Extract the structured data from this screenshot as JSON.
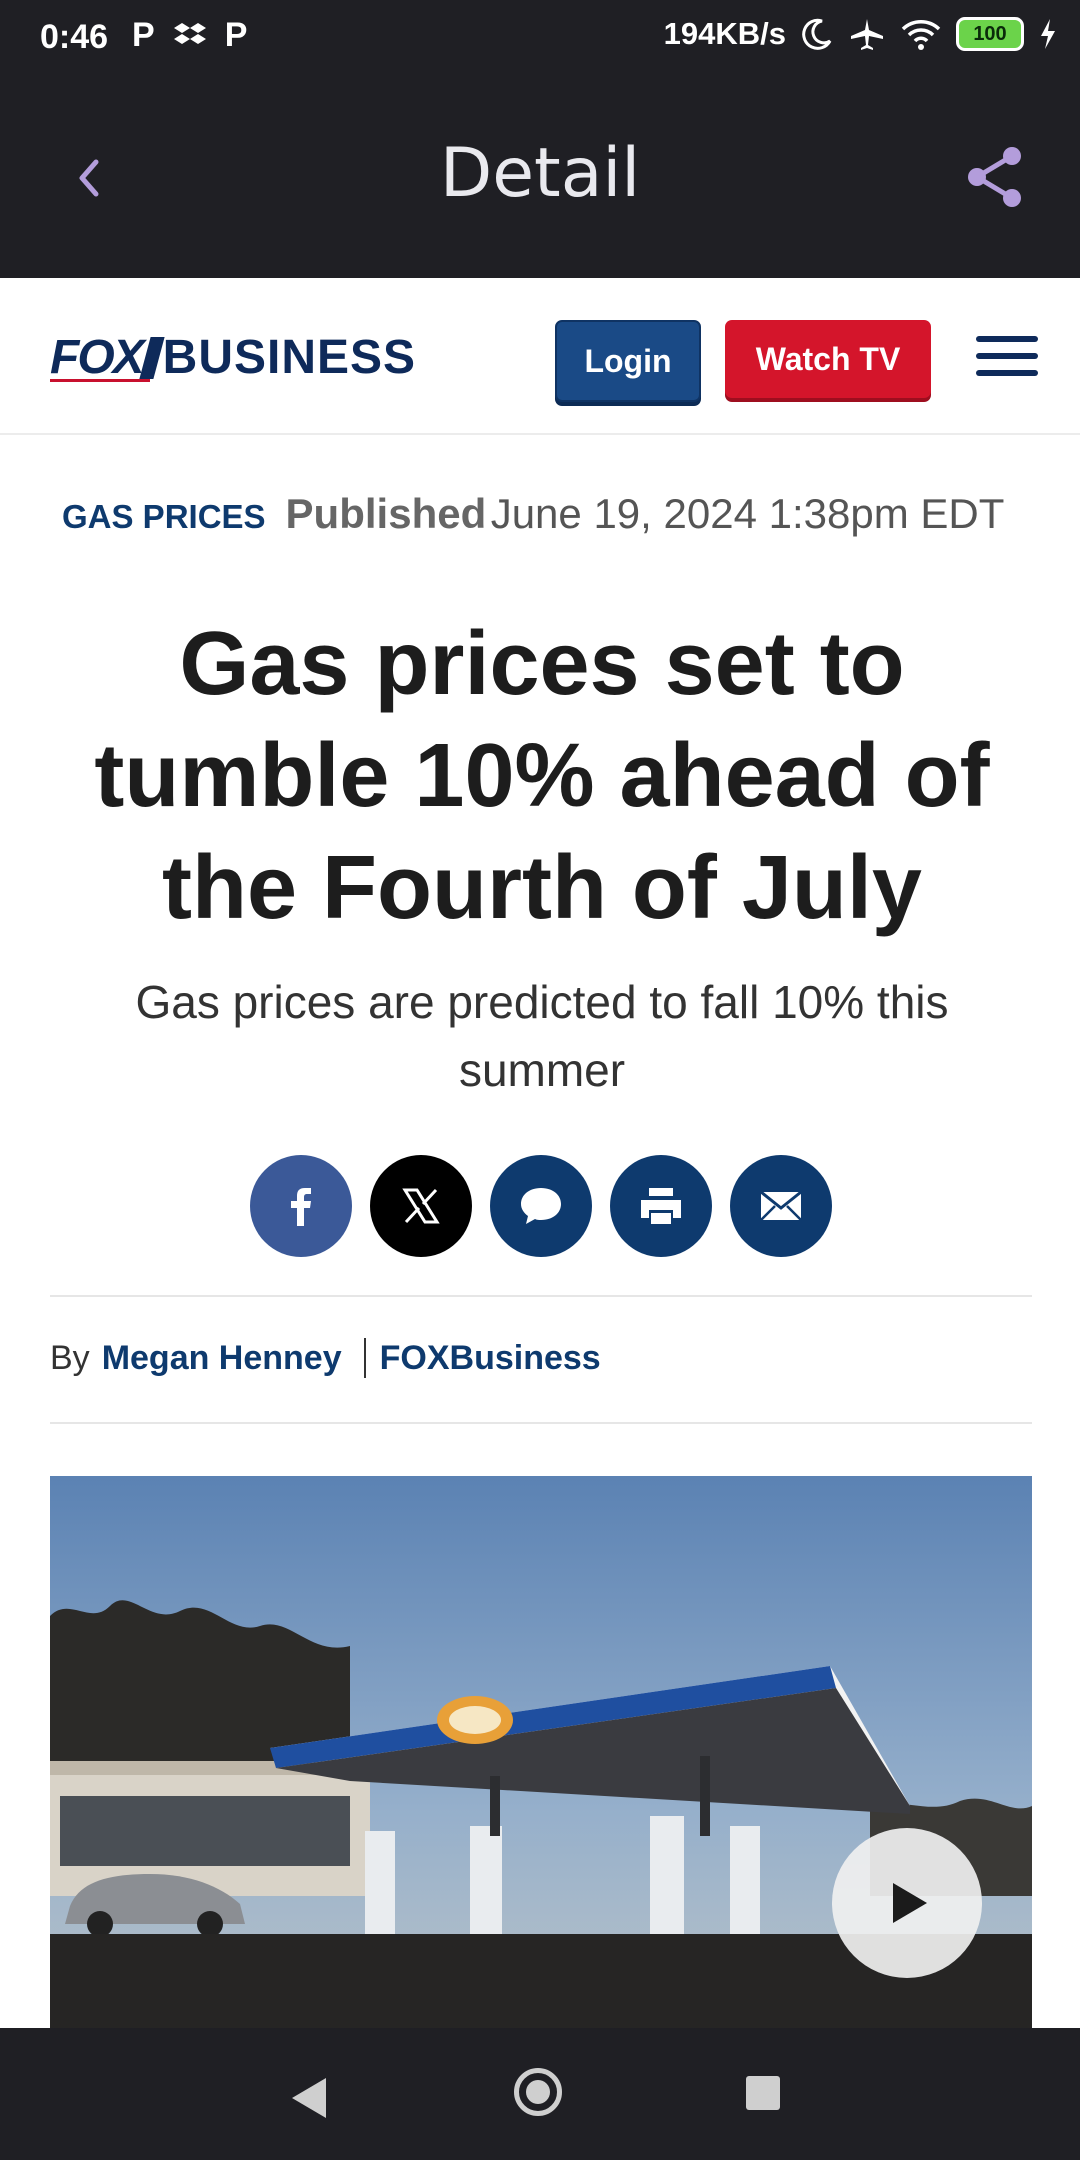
{
  "status_bar": {
    "time": "0:46",
    "notif_icons": [
      "P",
      "P"
    ],
    "network_speed": "194KB/s",
    "battery": "100"
  },
  "app_bar": {
    "title": "Detail",
    "back_icon": "chevron-left-icon",
    "share_icon": "share-icon",
    "accent_color": "#b39ddb"
  },
  "site_header": {
    "logo_fox": "FOX",
    "logo_business": "BUSINESS",
    "login_label": "Login",
    "watch_label": "Watch TV"
  },
  "article": {
    "category": "GAS PRICES",
    "published_label": "Published",
    "published_date": "June 19, 2024 1:38pm EDT",
    "headline": "Gas prices set to tumble 10% ahead of the Fourth of July",
    "subhead": "Gas prices are predicted to fall 10% this summer",
    "share_buttons": [
      {
        "name": "facebook",
        "color": "#3b5998"
      },
      {
        "name": "x",
        "color": "#000000"
      },
      {
        "name": "comments",
        "color": "#0e3a6e"
      },
      {
        "name": "print",
        "color": "#0e3a6e"
      },
      {
        "name": "email",
        "color": "#0e3a6e"
      }
    ],
    "byline_prefix": "By",
    "author": "Megan Henney",
    "source": "FOXBusiness"
  },
  "colors": {
    "brand_navy": "#0e2a5a",
    "brand_red": "#d4152b",
    "bar_bg": "#1f1f24"
  }
}
